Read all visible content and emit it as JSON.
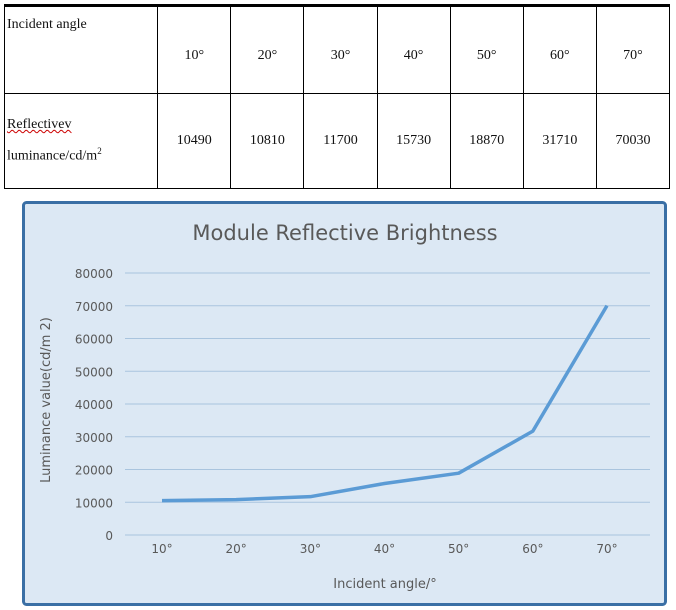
{
  "table": {
    "row_headers": [
      "Incident angle",
      "Reflectivev",
      "luminance/cd/m",
      "2"
    ],
    "angles": [
      "10°",
      "20°",
      "30°",
      "40°",
      "50°",
      "60°",
      "70°"
    ],
    "luminance": [
      "10490",
      "10810",
      "11700",
      "15730",
      "18870",
      "31710",
      "70030"
    ]
  },
  "chart_data": {
    "type": "line",
    "title": "Module Reflective Brightness",
    "xlabel": "Incident angle/°",
    "ylabel": "Luminance value(cd/m 2)",
    "categories": [
      "10°",
      "20°",
      "30°",
      "40°",
      "50°",
      "60°",
      "70°"
    ],
    "values": [
      10490,
      10810,
      11700,
      15730,
      18870,
      31710,
      70030
    ],
    "ylim": [
      0,
      80000
    ],
    "yticks": [
      "0",
      "10000",
      "20000",
      "30000",
      "40000",
      "50000",
      "60000",
      "70000",
      "80000"
    ],
    "grid": true,
    "colors": {
      "line": "#5b9bd5",
      "background": "#dce8f4",
      "border": "#3a6fa5",
      "grid": "#a9c4de"
    }
  }
}
